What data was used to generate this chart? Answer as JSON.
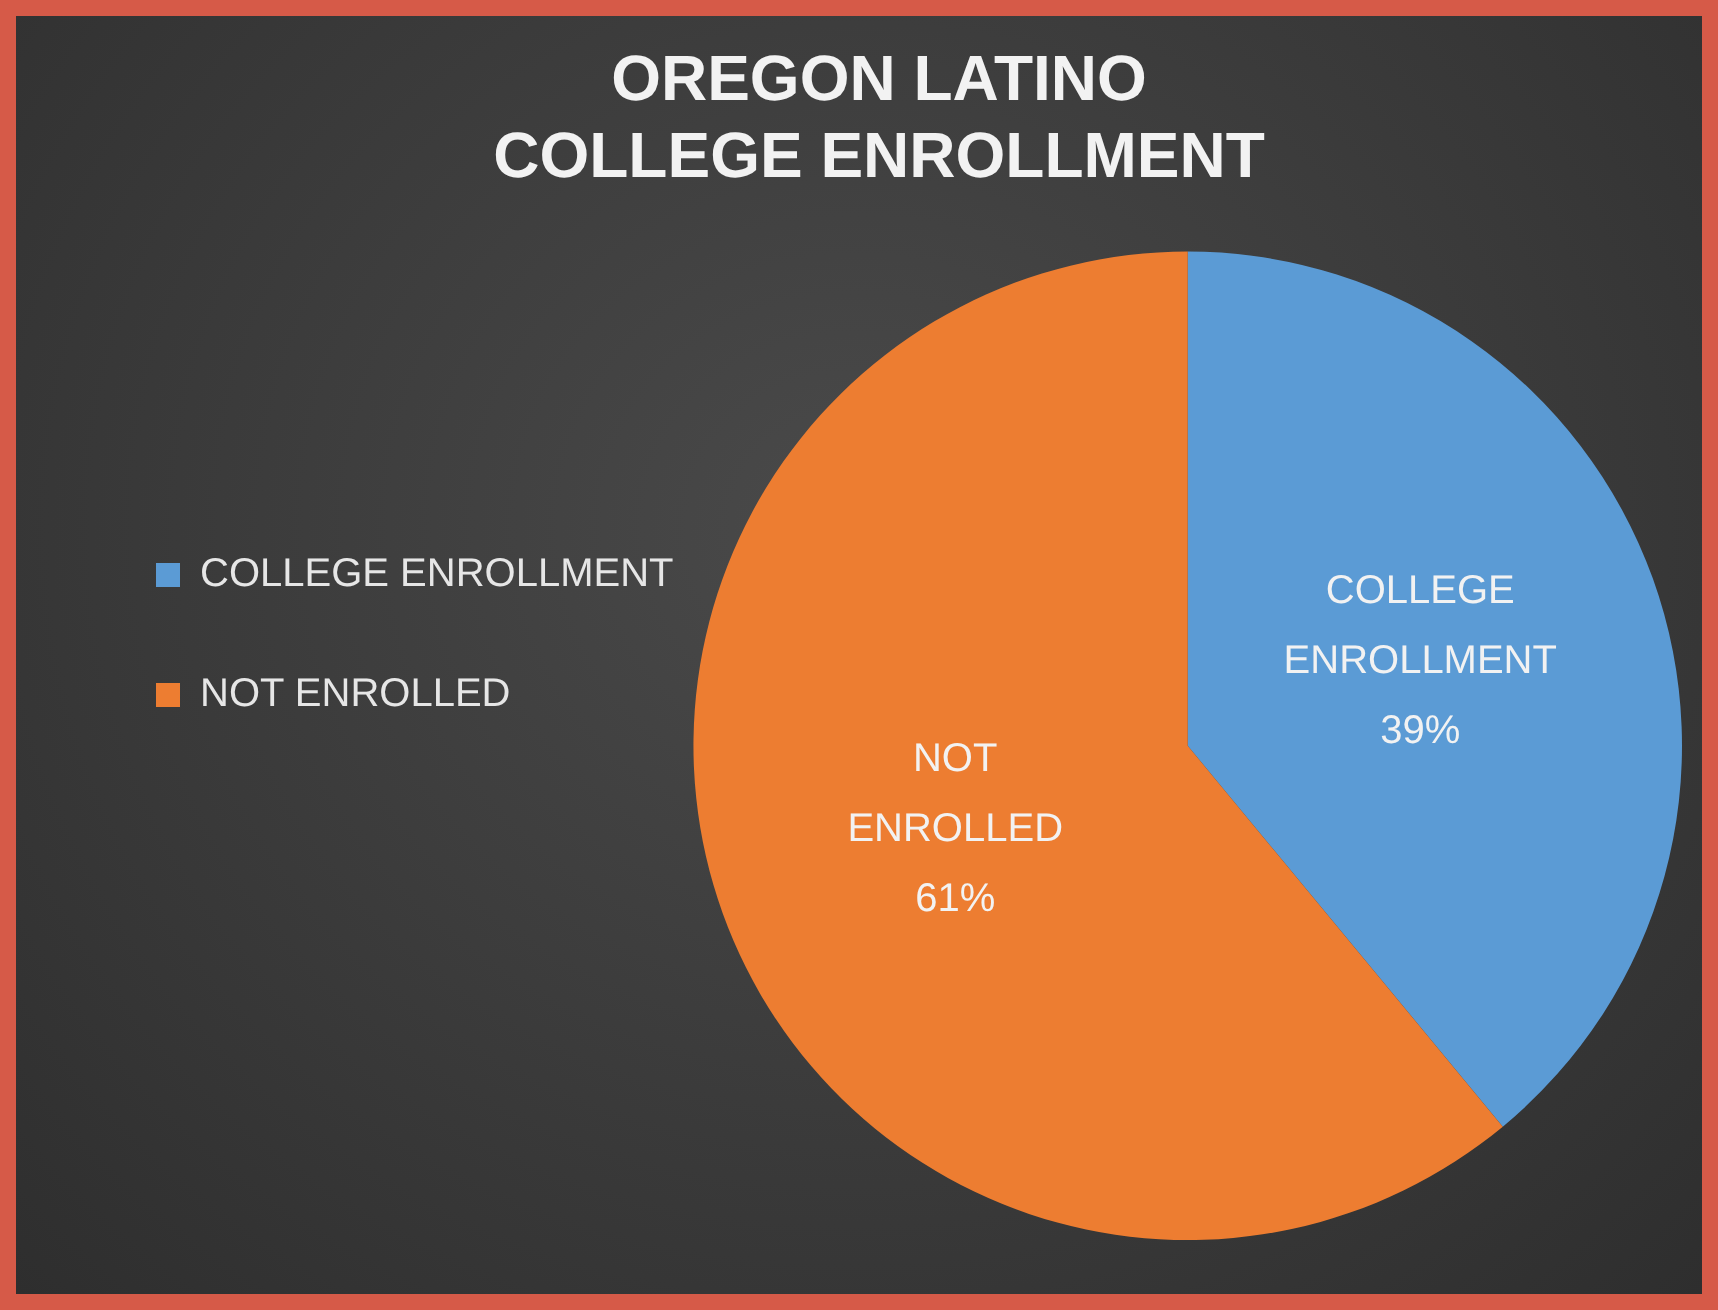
{
  "chart_data": {
    "type": "pie",
    "title": "OREGON LATINO\nCOLLEGE ENROLLMENT",
    "categories": [
      "COLLEGE ENROLLMENT",
      "NOT ENROLLED"
    ],
    "values": [
      39,
      61
    ],
    "colors": [
      "#5b9bd5",
      "#ed7d31"
    ],
    "value_labels": [
      "39%",
      "61%"
    ],
    "legend": "left"
  }
}
